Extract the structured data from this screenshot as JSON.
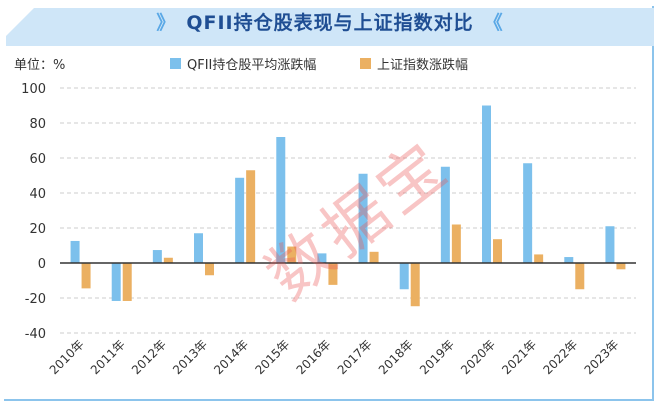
{
  "title": "QFII持仓股表现与上证指数对比",
  "title_chevrons": {
    "left": "》",
    "right": "《"
  },
  "unit_label": "单位：%",
  "watermark": "数据宝",
  "colors": {
    "qfii": "#7cc0ec",
    "sh": "#ebb062",
    "axis": "#333333",
    "grid": "#cccccc"
  },
  "chart_data": {
    "type": "bar",
    "title": "QFII持仓股表现与上证指数对比",
    "ylabel": "单位：%",
    "xlabel": "",
    "ylim": [
      -40,
      100
    ],
    "yticks": [
      100,
      80,
      60,
      40,
      20,
      0,
      -20,
      -40
    ],
    "grid": true,
    "legend_position": "top-center",
    "categories": [
      "2010年",
      "2011年",
      "2012年",
      "2013年",
      "2014年",
      "2015年",
      "2016年",
      "2017年",
      "2018年",
      "2019年",
      "2020年",
      "2021年",
      "2022年",
      "2023年"
    ],
    "series": [
      {
        "name": "QFII持仓股平均涨跌幅",
        "values": [
          12.6,
          -21.7,
          7.4,
          17,
          48.7,
          72,
          5.5,
          51,
          -15,
          55,
          90,
          57,
          3.4,
          21
        ]
      },
      {
        "name": "上证指数涨跌幅",
        "values": [
          -14.5,
          -21.7,
          3,
          -7,
          53,
          9.4,
          -12.5,
          6.4,
          -24.7,
          22,
          13.6,
          4.9,
          -15,
          -3.6
        ]
      }
    ]
  }
}
